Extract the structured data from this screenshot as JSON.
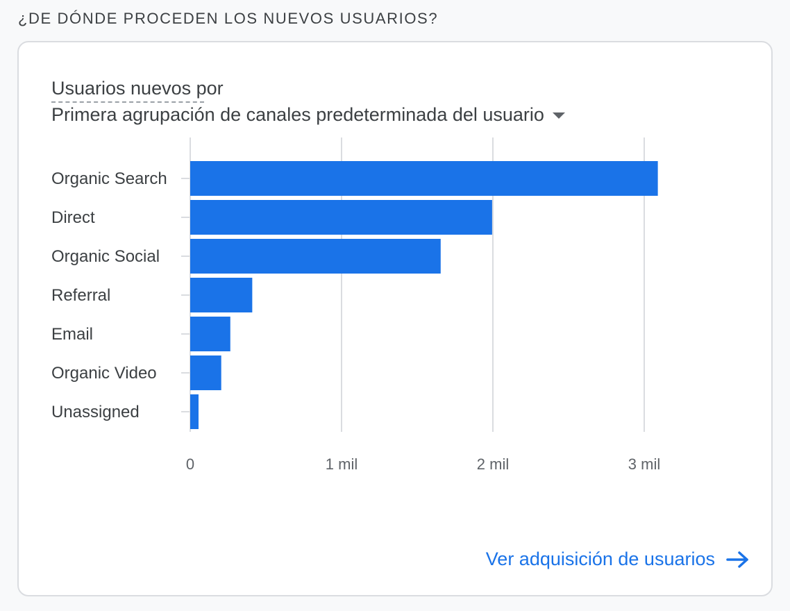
{
  "section_title": "¿DE DÓNDE PROCEDEN LOS NUEVOS USUARIOS?",
  "card": {
    "metric_label": "Usuarios nuevos por",
    "dimension_label": "Primera agrupación de canales predeterminada del usuario",
    "footer_link": "Ver adquisición de usuarios"
  },
  "icons": {
    "dropdown": "caret-down-icon",
    "footer": "arrow-right-icon"
  },
  "colors": {
    "bar": "#1a73e8",
    "link": "#1a73e8",
    "grid": "#dadce0"
  },
  "chart_data": {
    "type": "bar",
    "orientation": "horizontal",
    "categories": [
      "Organic Search",
      "Direct",
      "Organic Social",
      "Referral",
      "Email",
      "Organic Video",
      "Unassigned"
    ],
    "values": [
      3090,
      1995,
      1655,
      410,
      265,
      205,
      55
    ],
    "xlim": [
      0,
      3000
    ],
    "xticks": [
      0,
      1000,
      2000,
      3000
    ],
    "xtick_labels": [
      "0",
      "1 mil",
      "2 mil",
      "3 mil"
    ],
    "grid": true
  }
}
